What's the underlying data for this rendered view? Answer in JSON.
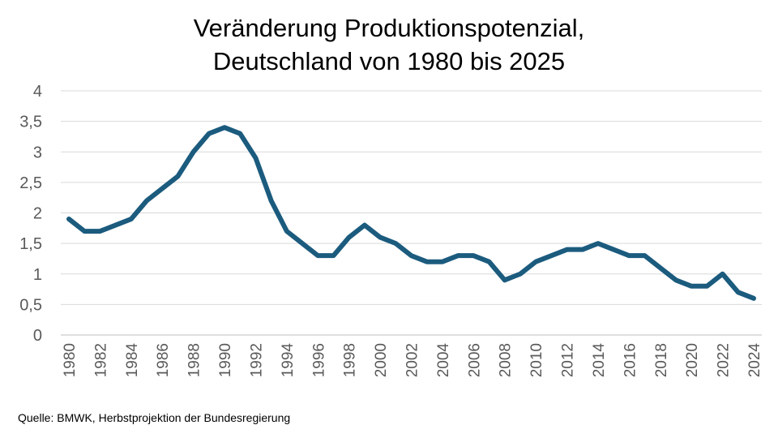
{
  "title_line1": "Veränderung Produktionspotenzial,",
  "title_line2": "Deutschland von 1980 bis 2025",
  "source": "Quelle: BMWK, Herbstprojektion der Bundesregierung",
  "chart_data": {
    "type": "line",
    "title": "Veränderung Produktionspotenzial, Deutschland von 1980 bis 2025",
    "xlabel": "",
    "ylabel": "",
    "ylim": [
      0,
      4
    ],
    "y_ticks": [
      0,
      0.5,
      1,
      1.5,
      2,
      2.5,
      3,
      3.5,
      4
    ],
    "y_tick_labels": [
      "0",
      "0,5",
      "1",
      "1,5",
      "2",
      "2,5",
      "3",
      "3,5",
      "4"
    ],
    "x_tick_labels": [
      "1980",
      "1982",
      "1984",
      "1986",
      "1988",
      "1990",
      "1992",
      "1994",
      "1996",
      "1998",
      "2000",
      "2002",
      "2004",
      "2006",
      "2008",
      "2010",
      "2012",
      "2014",
      "2016",
      "2018",
      "2020",
      "2022",
      "2024"
    ],
    "grid": "horizontal",
    "legend": "none",
    "line_color": "#1b5b7e",
    "series": [
      {
        "x": [
          1980,
          1981,
          1982,
          1983,
          1984,
          1985,
          1986,
          1987,
          1988,
          1989,
          1990,
          1991,
          1992,
          1993,
          1994,
          1995,
          1996,
          1997,
          1998,
          1999,
          2000,
          2001,
          2002,
          2003,
          2004,
          2005,
          2006,
          2007,
          2008,
          2009,
          2010,
          2011,
          2012,
          2013,
          2014,
          2015,
          2016,
          2017,
          2018,
          2019,
          2020,
          2021,
          2022,
          2023,
          2024
        ],
        "values": [
          1.9,
          1.7,
          1.7,
          1.8,
          1.9,
          2.2,
          2.4,
          2.6,
          3.0,
          3.3,
          3.4,
          3.3,
          2.9,
          2.2,
          1.7,
          1.5,
          1.3,
          1.3,
          1.6,
          1.8,
          1.6,
          1.5,
          1.3,
          1.2,
          1.2,
          1.3,
          1.3,
          1.2,
          0.9,
          1.0,
          1.2,
          1.3,
          1.4,
          1.4,
          1.5,
          1.4,
          1.3,
          1.3,
          1.1,
          0.9,
          0.8,
          0.8,
          1.0,
          0.7,
          0.6
        ]
      }
    ]
  }
}
